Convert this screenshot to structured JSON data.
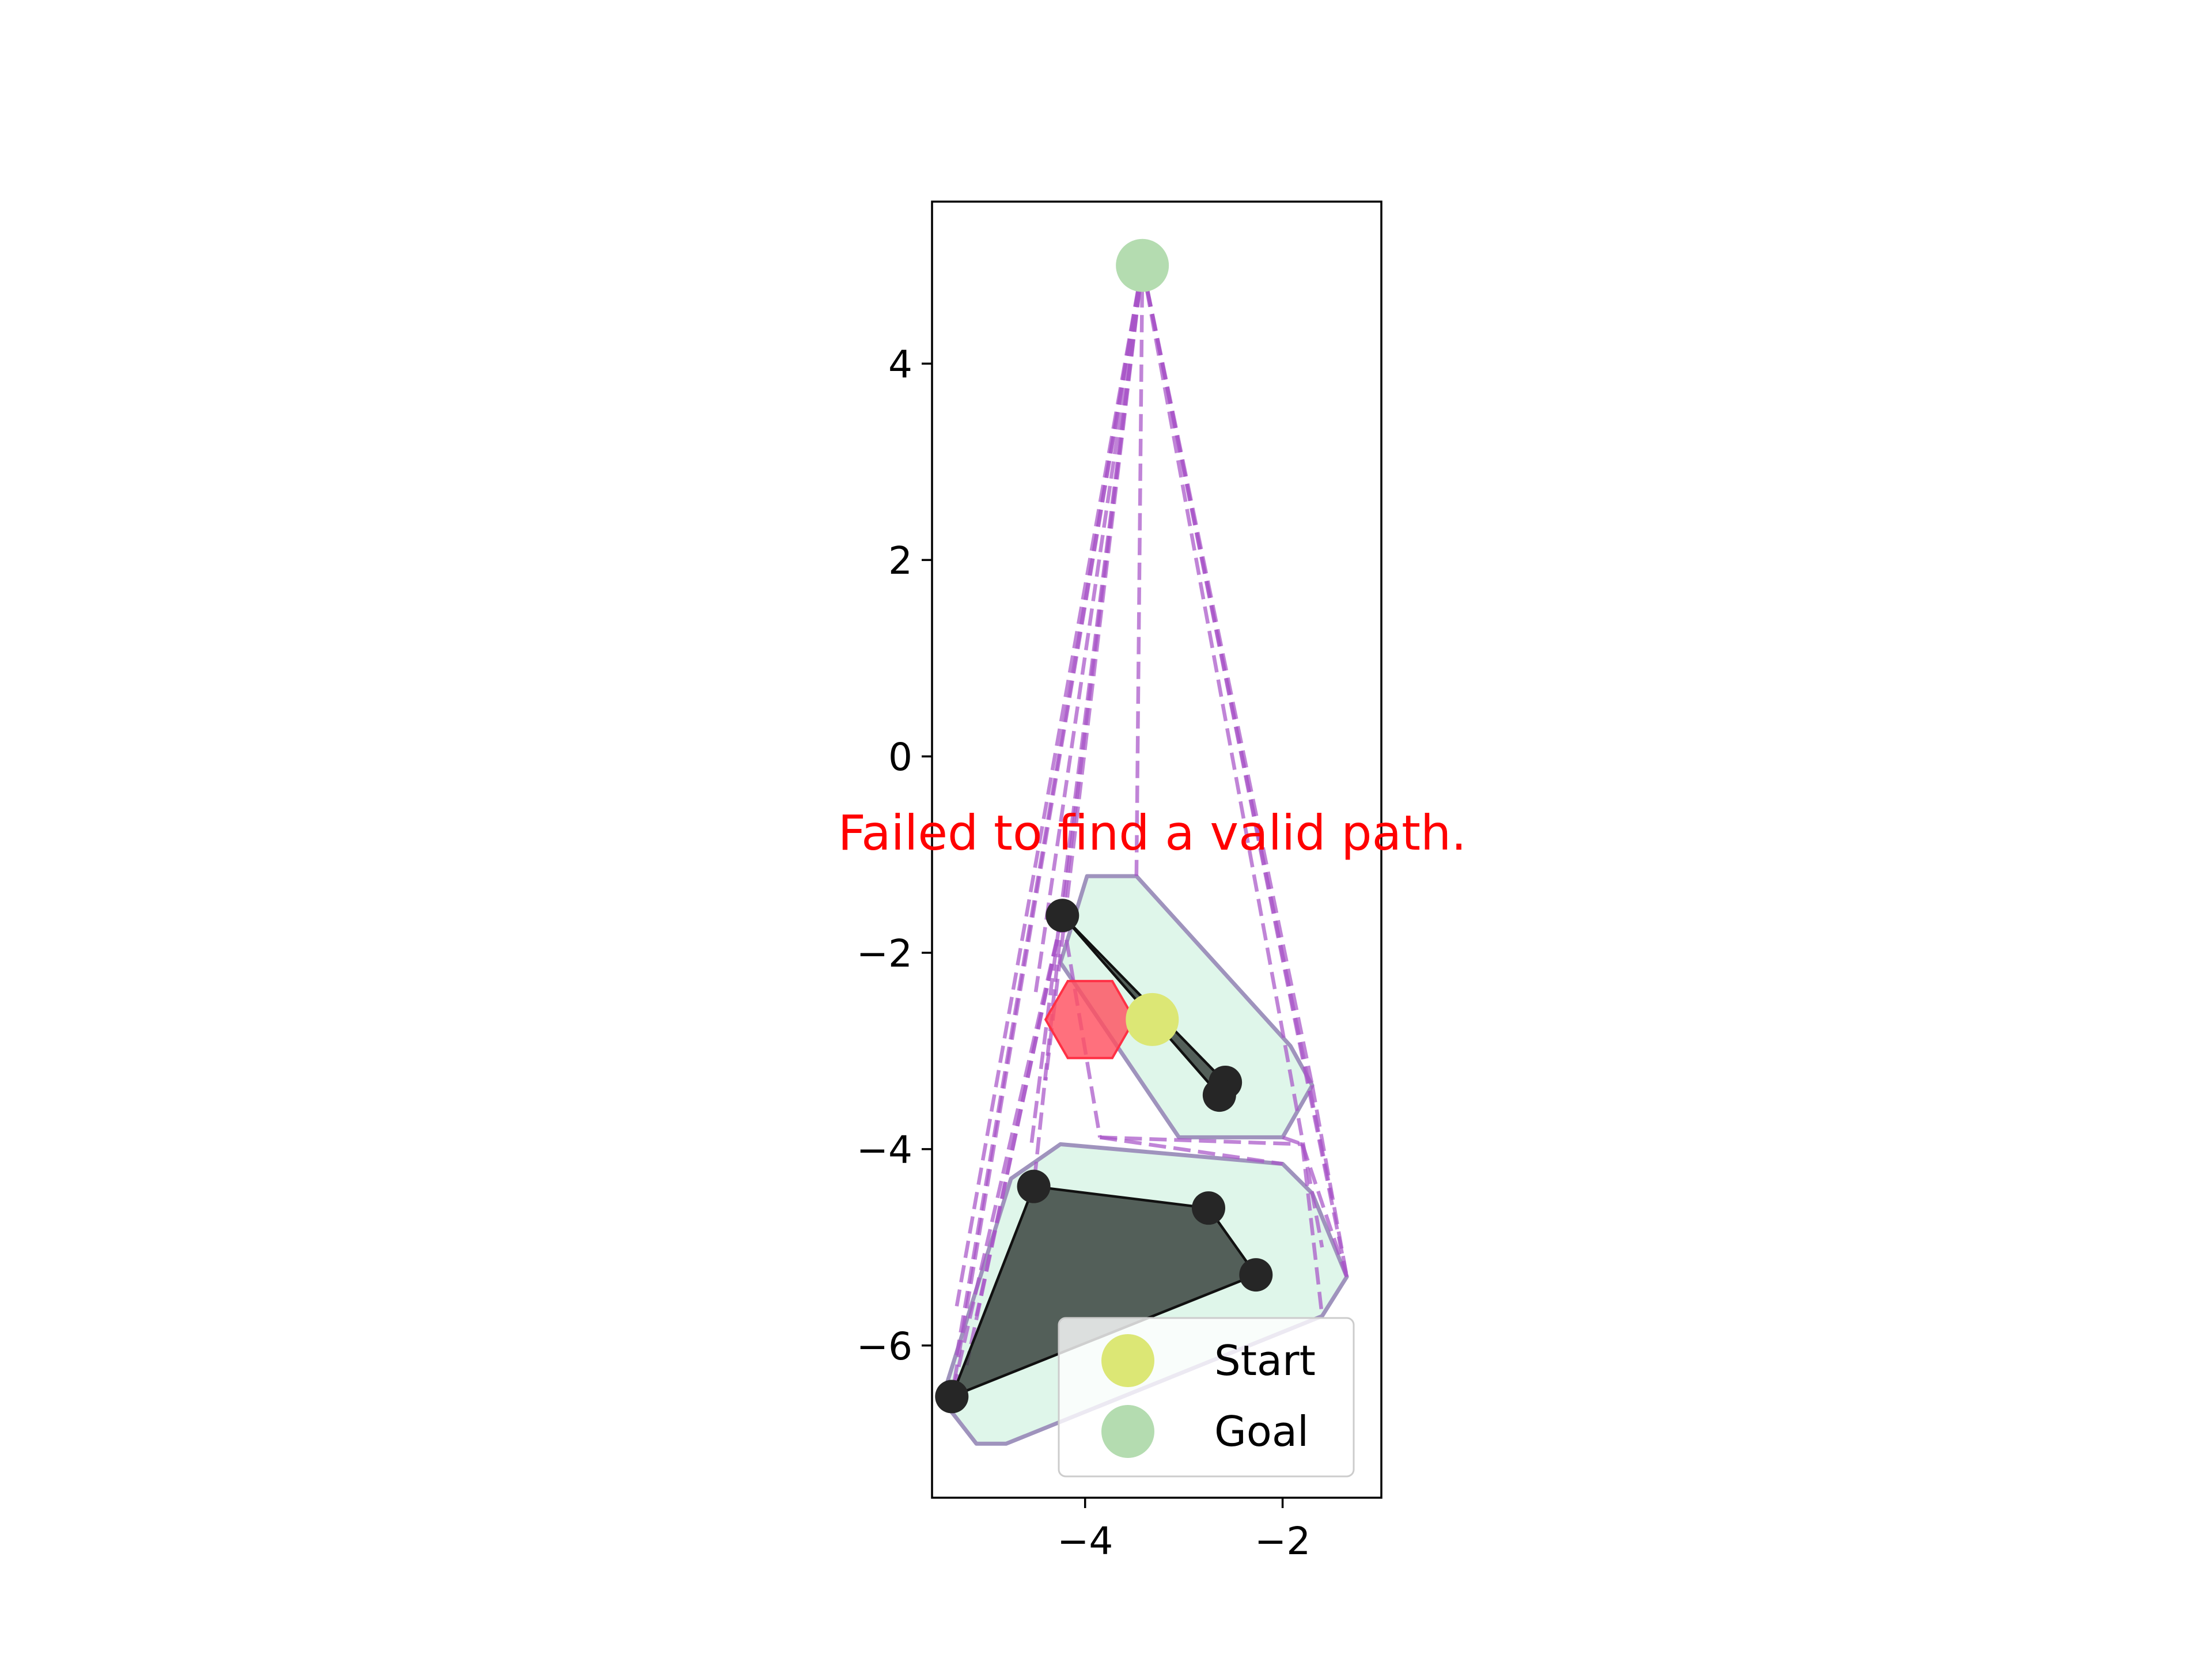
{
  "chart_data": {
    "type": "scatter",
    "title": "",
    "xlabel": "",
    "ylabel": "",
    "xlim": [
      -5.55,
      -1.0
    ],
    "ylim": [
      -7.55,
      5.65
    ],
    "xticks": [
      {
        "value": -4,
        "label": "−4"
      },
      {
        "value": -2,
        "label": "−2"
      }
    ],
    "yticks": [
      {
        "value": 4,
        "label": "4"
      },
      {
        "value": 2,
        "label": "2"
      },
      {
        "value": 0,
        "label": "0"
      },
      {
        "value": -2,
        "label": "−2"
      },
      {
        "value": -4,
        "label": "−4"
      },
      {
        "value": -6,
        "label": "−6"
      }
    ],
    "grid": false,
    "legend": {
      "placement": "lower-right",
      "entries": [
        {
          "label": "Start",
          "color": "#dce775"
        },
        {
          "label": "Goal",
          "color": "#b4dcb0"
        }
      ]
    },
    "annotation": {
      "text": "Failed to find a valid path.",
      "color": "#ff0000",
      "x": -3.32,
      "y": -0.95
    },
    "start": {
      "x": -3.32,
      "y": -2.68
    },
    "goal": {
      "x": -3.42,
      "y": 5.0
    },
    "robot": {
      "x": -3.95,
      "y": -2.68,
      "radius": 0.45,
      "color": "#ff5060"
    },
    "obstacles": [
      {
        "vertices": [
          [
            -4.23,
            -1.62
          ],
          [
            -2.58,
            -3.32
          ],
          [
            -2.64,
            -3.45
          ]
        ]
      },
      {
        "vertices": [
          [
            -4.52,
            -4.38
          ],
          [
            -2.75,
            -4.6
          ],
          [
            -2.27,
            -5.28
          ],
          [
            -5.35,
            -6.52
          ]
        ]
      }
    ],
    "inflated_regions": [
      {
        "vertices": [
          [
            -3.98,
            -1.22
          ],
          [
            -3.48,
            -1.22
          ],
          [
            -1.92,
            -2.95
          ],
          [
            -1.7,
            -3.35
          ],
          [
            -2.0,
            -3.88
          ],
          [
            -3.05,
            -3.88
          ],
          [
            -4.25,
            -2.1
          ]
        ]
      },
      {
        "vertices": [
          [
            -4.25,
            -3.95
          ],
          [
            -2.0,
            -4.15
          ],
          [
            -1.7,
            -4.45
          ],
          [
            -1.35,
            -5.3
          ],
          [
            -1.6,
            -5.7
          ],
          [
            -4.8,
            -7.0
          ],
          [
            -5.1,
            -7.0
          ],
          [
            -5.45,
            -6.55
          ],
          [
            -4.75,
            -4.3
          ]
        ]
      }
    ],
    "visibility_edges": [
      [
        [
          -3.42,
          5.0
        ],
        [
          -4.23,
          -1.62
        ]
      ],
      [
        [
          -3.42,
          5.0
        ],
        [
          -4.5,
          -2.4
        ]
      ],
      [
        [
          -3.42,
          5.0
        ],
        [
          -4.4,
          -3.3
        ]
      ],
      [
        [
          -3.42,
          5.0
        ],
        [
          -4.55,
          -4.0
        ]
      ],
      [
        [
          -3.42,
          5.0
        ],
        [
          -5.3,
          -5.6
        ]
      ],
      [
        [
          -3.42,
          5.0
        ],
        [
          -5.35,
          -6.52
        ]
      ],
      [
        [
          -3.42,
          5.0
        ],
        [
          -5.3,
          -6.1
        ]
      ],
      [
        [
          -3.42,
          5.0
        ],
        [
          -3.48,
          -1.22
        ]
      ],
      [
        [
          -3.42,
          5.0
        ],
        [
          -1.7,
          -3.35
        ]
      ],
      [
        [
          -3.42,
          5.0
        ],
        [
          -1.5,
          -4.5
        ]
      ],
      [
        [
          -3.42,
          5.0
        ],
        [
          -1.35,
          -5.3
        ]
      ],
      [
        [
          -3.42,
          5.0
        ],
        [
          -1.6,
          -5.0
        ]
      ],
      [
        [
          -4.23,
          -1.62
        ],
        [
          -5.35,
          -6.52
        ]
      ],
      [
        [
          -4.23,
          -1.62
        ],
        [
          -5.2,
          -6.2
        ]
      ],
      [
        [
          -4.23,
          -1.62
        ],
        [
          -4.52,
          -4.38
        ]
      ],
      [
        [
          -4.23,
          -1.62
        ],
        [
          -3.85,
          -3.88
        ]
      ],
      [
        [
          -4.23,
          -1.62
        ],
        [
          -5.1,
          -5.7
        ]
      ],
      [
        [
          -3.85,
          -3.88
        ],
        [
          -1.8,
          -3.95
        ]
      ],
      [
        [
          -3.85,
          -3.88
        ],
        [
          -2.0,
          -4.15
        ]
      ],
      [
        [
          -2.0,
          -3.88
        ],
        [
          -1.8,
          -3.95
        ]
      ],
      [
        [
          -1.7,
          -3.35
        ],
        [
          -1.35,
          -5.3
        ]
      ],
      [
        [
          -1.8,
          -3.95
        ],
        [
          -1.35,
          -5.3
        ]
      ],
      [
        [
          -1.8,
          -3.95
        ],
        [
          -1.6,
          -5.7
        ]
      ]
    ]
  }
}
